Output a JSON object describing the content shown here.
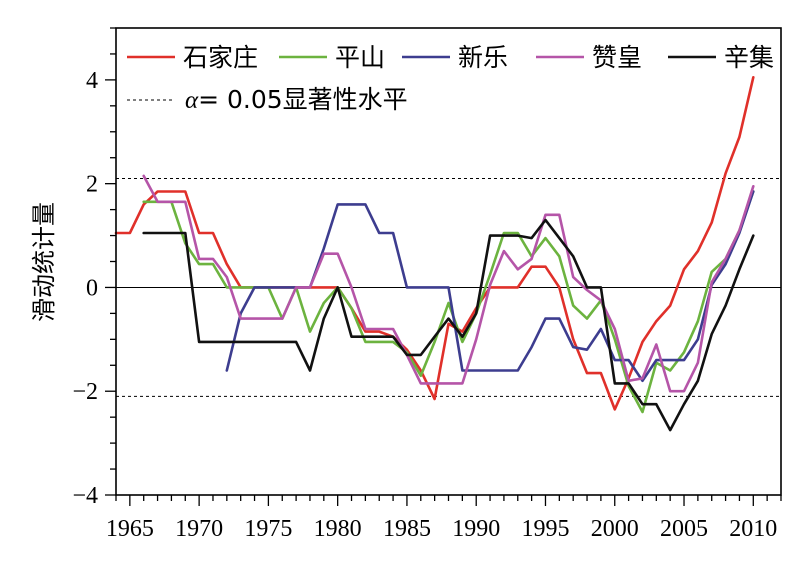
{
  "chart_data": {
    "type": "line",
    "ylabel": "滑动统计量",
    "xlabel": "",
    "xlim": [
      1964,
      2012
    ],
    "ylim": [
      -4,
      5
    ],
    "x_ticks": [
      1965,
      1970,
      1975,
      1980,
      1985,
      1990,
      1995,
      2000,
      2005,
      2010
    ],
    "y_ticks": [
      -4,
      -2,
      0,
      2,
      4
    ],
    "y_tick_labels": [
      "−4",
      "−2",
      "0",
      "2",
      "4"
    ],
    "grid": false,
    "legend_position": "top",
    "reference_lines": [
      {
        "y": 0,
        "style": "solid"
      },
      {
        "y": 2.1,
        "style": "dashed"
      },
      {
        "y": -2.1,
        "style": "dashed"
      }
    ],
    "significance_legend": {
      "alpha_symbol": "α",
      "label": "= 0.05显著性水平"
    },
    "series": [
      {
        "name": "石家庄",
        "color": "#e0302a",
        "x": [
          1964,
          1965,
          1966,
          1967,
          1968,
          1969,
          1970,
          1971,
          1972,
          1973,
          1974,
          1975,
          1976,
          1977,
          1978,
          1979,
          1980,
          1981,
          1982,
          1983,
          1984,
          1985,
          1986,
          1987,
          1988,
          1989,
          1990,
          1991,
          1992,
          1993,
          1994,
          1995,
          1996,
          1997,
          1998,
          1999,
          2000,
          2001,
          2002,
          2003,
          2004,
          2005,
          2006,
          2007,
          2008,
          2009,
          2010
        ],
        "y": [
          1.05,
          1.05,
          1.6,
          1.85,
          1.85,
          1.85,
          1.05,
          1.05,
          0.45,
          0,
          0,
          0,
          0,
          0,
          0,
          0,
          0,
          -0.4,
          -0.85,
          -0.85,
          -0.95,
          -1.2,
          -1.6,
          -2.15,
          -0.7,
          -0.85,
          -0.4,
          0,
          0,
          0,
          0.4,
          0.4,
          0,
          -1.0,
          -1.65,
          -1.65,
          -2.35,
          -1.75,
          -1.05,
          -0.65,
          -0.35,
          0.35,
          0.7,
          1.25,
          2.2,
          2.9,
          4.05
        ]
      },
      {
        "name": "平山",
        "color": "#6cb33f",
        "x": [
          1966,
          1967,
          1968,
          1969,
          1970,
          1971,
          1972,
          1973,
          1974,
          1975,
          1976,
          1977,
          1978,
          1979,
          1980,
          1981,
          1982,
          1983,
          1984,
          1985,
          1986,
          1987,
          1988,
          1989,
          1990,
          1991,
          1992,
          1993,
          1994,
          1995,
          1996,
          1997,
          1998,
          1999,
          2000,
          2001,
          2002,
          2003,
          2004,
          2005,
          2006,
          2007,
          2008,
          2009,
          2010
        ],
        "y": [
          1.65,
          1.65,
          1.65,
          0.85,
          0.45,
          0.45,
          0,
          0,
          0,
          0,
          -0.6,
          0,
          -0.85,
          -0.3,
          0,
          -0.4,
          -1.05,
          -1.05,
          -1.05,
          -1.25,
          -1.7,
          -1.05,
          -0.3,
          -1.05,
          -0.5,
          0.25,
          1.05,
          1.05,
          0.6,
          0.95,
          0.6,
          -0.35,
          -0.6,
          -0.25,
          -1.0,
          -1.9,
          -2.4,
          -1.45,
          -1.6,
          -1.25,
          -0.65,
          0.3,
          0.55,
          1.1,
          1.85
        ]
      },
      {
        "name": "新乐",
        "color": "#3d3d8f",
        "x": [
          1972,
          1973,
          1974,
          1975,
          1976,
          1977,
          1978,
          1979,
          1980,
          1981,
          1982,
          1983,
          1984,
          1985,
          1986,
          1987,
          1988,
          1989,
          1990,
          1991,
          1992,
          1993,
          1994,
          1995,
          1996,
          1997,
          1998,
          1999,
          2000,
          2001,
          2002,
          2003,
          2004,
          2005,
          2006,
          2007,
          2008,
          2009,
          2010
        ],
        "y": [
          -1.6,
          -0.5,
          0,
          0,
          0,
          0,
          0,
          0.75,
          1.6,
          1.6,
          1.6,
          1.05,
          1.05,
          0,
          0,
          0,
          0,
          -1.6,
          -1.6,
          -1.6,
          -1.6,
          -1.6,
          -1.15,
          -0.6,
          -0.6,
          -1.15,
          -1.2,
          -0.8,
          -1.4,
          -1.4,
          -1.8,
          -1.4,
          -1.4,
          -1.4,
          -1.0,
          0.05,
          0.45,
          1.05,
          1.85
        ]
      },
      {
        "name": "赞皇",
        "color": "#b555a8",
        "x": [
          1966,
          1967,
          1968,
          1969,
          1970,
          1971,
          1972,
          1973,
          1974,
          1975,
          1976,
          1977,
          1978,
          1979,
          1980,
          1981,
          1982,
          1983,
          1984,
          1985,
          1986,
          1987,
          1988,
          1989,
          1990,
          1991,
          1992,
          1993,
          1994,
          1995,
          1996,
          1997,
          1998,
          1999,
          2000,
          2001,
          2002,
          2003,
          2004,
          2005,
          2006,
          2007,
          2008,
          2009,
          2010
        ],
        "y": [
          2.15,
          1.65,
          1.65,
          1.65,
          0.55,
          0.55,
          0.2,
          -0.6,
          -0.6,
          -0.6,
          -0.6,
          0,
          0,
          0.65,
          0.65,
          0,
          -0.8,
          -0.8,
          -0.8,
          -1.3,
          -1.85,
          -1.85,
          -1.85,
          -1.85,
          -1.0,
          0.05,
          0.7,
          0.35,
          0.55,
          1.4,
          1.4,
          0.2,
          -0.05,
          -0.25,
          -0.8,
          -1.8,
          -1.75,
          -1.1,
          -2.0,
          -2.0,
          -1.45,
          0.1,
          0.55,
          1.1,
          1.95
        ]
      },
      {
        "name": "辛集",
        "color": "#111111",
        "x": [
          1966,
          1967,
          1968,
          1969,
          1970,
          1971,
          1972,
          1973,
          1974,
          1975,
          1976,
          1977,
          1978,
          1979,
          1980,
          1981,
          1982,
          1983,
          1984,
          1985,
          1986,
          1987,
          1988,
          1989,
          1990,
          1991,
          1992,
          1993,
          1994,
          1995,
          1996,
          1997,
          1998,
          1999,
          2000,
          2001,
          2002,
          2003,
          2004,
          2005,
          2006,
          2007,
          2008,
          2009,
          2010
        ],
        "y": [
          1.05,
          1.05,
          1.05,
          1.05,
          -1.05,
          -1.05,
          -1.05,
          -1.05,
          -1.05,
          -1.05,
          -1.05,
          -1.05,
          -1.6,
          -0.6,
          0,
          -0.95,
          -0.95,
          -0.95,
          -0.95,
          -1.3,
          -1.3,
          -0.95,
          -0.6,
          -0.95,
          -0.5,
          1.0,
          1.0,
          1.0,
          0.95,
          1.3,
          0.95,
          0.6,
          0,
          0,
          -1.85,
          -1.85,
          -2.25,
          -2.25,
          -2.75,
          -2.25,
          -1.8,
          -0.9,
          -0.35,
          0.35,
          1.0
        ]
      }
    ]
  }
}
